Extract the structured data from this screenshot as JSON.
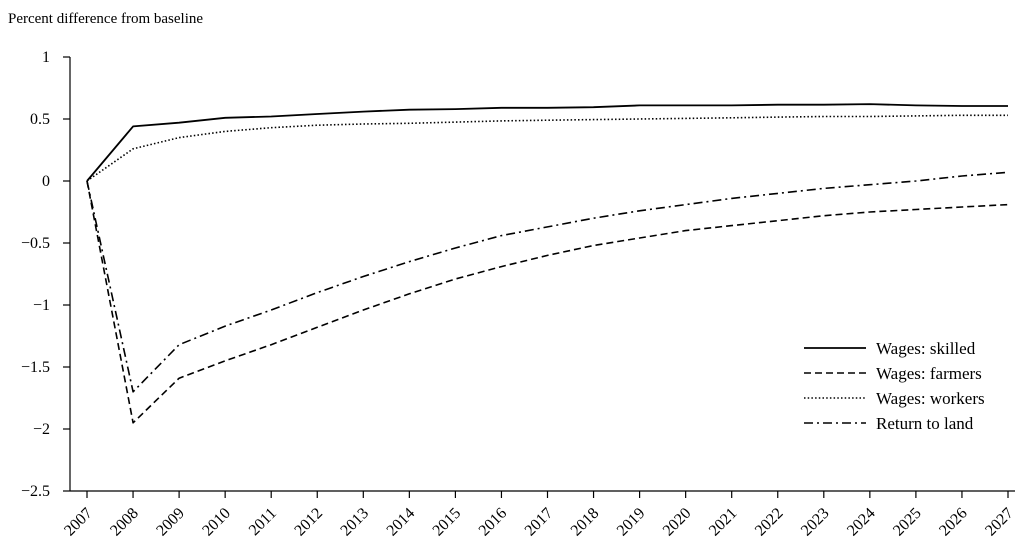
{
  "chart_data": {
    "type": "line",
    "title": "",
    "xlabel": "",
    "ylabel": "Percent difference from baseline",
    "x": [
      "2007",
      "2008",
      "2009",
      "2010",
      "2011",
      "2012",
      "2013",
      "2014",
      "2015",
      "2016",
      "2017",
      "2018",
      "2019",
      "2020",
      "2021",
      "2022",
      "2023",
      "2024",
      "2025",
      "2026",
      "2027"
    ],
    "ylim": [
      -2.5,
      1
    ],
    "yticks": [
      1,
      0.5,
      0,
      -0.5,
      -1,
      -1.5,
      -2,
      -2.5
    ],
    "ytick_labels": [
      "1",
      "0.5",
      "0",
      "−0.5",
      "−1",
      "−1.5",
      "−2",
      "−2.5"
    ],
    "grid": false,
    "legend_position": "bottom-right",
    "line_color": "#000000",
    "series": [
      {
        "name": "Wages: skilled",
        "style": "solid",
        "values": [
          0,
          0.44,
          0.47,
          0.51,
          0.52,
          0.54,
          0.56,
          0.575,
          0.58,
          0.59,
          0.59,
          0.595,
          0.61,
          0.61,
          0.61,
          0.615,
          0.615,
          0.62,
          0.61,
          0.605,
          0.605
        ]
      },
      {
        "name": "Wages: farmers",
        "style": "dashed",
        "values": [
          0,
          -1.95,
          -1.59,
          -1.45,
          -1.32,
          -1.18,
          -1.04,
          -0.91,
          -0.79,
          -0.69,
          -0.6,
          -0.52,
          -0.46,
          -0.4,
          -0.36,
          -0.32,
          -0.28,
          -0.25,
          -0.23,
          -0.21,
          -0.19
        ]
      },
      {
        "name": "Wages: workers",
        "style": "dotted",
        "values": [
          0,
          0.26,
          0.35,
          0.4,
          0.43,
          0.45,
          0.46,
          0.465,
          0.475,
          0.485,
          0.49,
          0.495,
          0.5,
          0.505,
          0.51,
          0.515,
          0.52,
          0.52,
          0.525,
          0.53,
          0.53
        ]
      },
      {
        "name": "Return to land",
        "style": "dashdot",
        "values": [
          0,
          -1.7,
          -1.32,
          -1.17,
          -1.04,
          -0.9,
          -0.77,
          -0.65,
          -0.54,
          -0.44,
          -0.37,
          -0.3,
          -0.24,
          -0.19,
          -0.14,
          -0.1,
          -0.06,
          -0.03,
          0.0,
          0.04,
          0.07
        ]
      }
    ]
  }
}
